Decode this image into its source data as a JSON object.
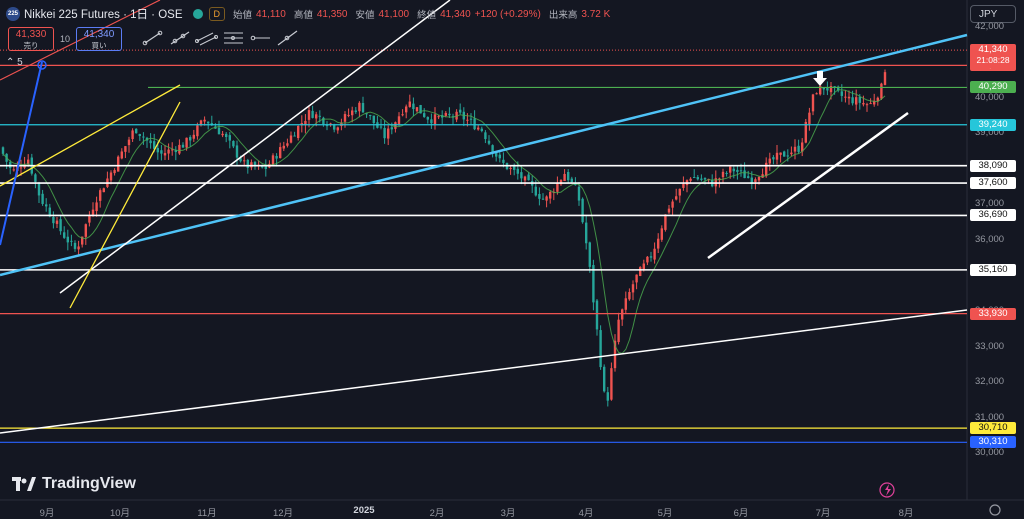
{
  "header": {
    "symbol_badge": "225",
    "title": "Nikkei 225 Futures · 1日 · OSE",
    "d_pill": "D",
    "ohlc": [
      {
        "key": "始値",
        "value": "41,110"
      },
      {
        "key": "高値",
        "value": "41,350"
      },
      {
        "key": "安値",
        "value": "41,100"
      },
      {
        "key": "終値",
        "value": "41,340"
      },
      {
        "key": "",
        "value": "+120 (+0.29%)"
      },
      {
        "key": "出来高",
        "value": "3.72 K"
      }
    ]
  },
  "trade": {
    "sell_price": "41,330",
    "sell_label": "売り",
    "spread": "10",
    "buy_price": "41,340",
    "buy_label": "買い"
  },
  "indicator_toggle": "5",
  "currency": "JPY",
  "logo_text": "TradingView",
  "chart_data": {
    "type": "candlestick",
    "y_ticks": [
      "42,000",
      "41,000",
      "40,000",
      "39,000",
      "37,000",
      "36,000",
      "34,000",
      "33,000",
      "32,000",
      "31,000",
      "30,000"
    ],
    "x_ticks": [
      "9月",
      "10月",
      "11月",
      "12月",
      "2025",
      "2月",
      "3月",
      "4月",
      "5月",
      "6月",
      "7月",
      "8月"
    ],
    "ylim": [
      29800,
      42500
    ],
    "horizontal_levels": [
      {
        "value": 40910,
        "label": "40,910",
        "color": "#ef5350"
      },
      {
        "value": 40290,
        "label": "40,290",
        "color": "#4caf50"
      },
      {
        "value": 39240,
        "label": "39,240",
        "color": "#26c6da"
      },
      {
        "value": 38090,
        "label": "38,090",
        "color": "#ffffff"
      },
      {
        "value": 37600,
        "label": "37,600",
        "color": "#ffffff"
      },
      {
        "value": 36690,
        "label": "36,690",
        "color": "#ffffff"
      },
      {
        "value": 35160,
        "label": "35,160",
        "color": "#ffffff"
      },
      {
        "value": 33930,
        "label": "33,930",
        "color": "#ef5350"
      },
      {
        "value": 30710,
        "label": "30,710",
        "color": "#ffeb3b"
      },
      {
        "value": 30310,
        "label": "30,310",
        "color": "#2962ff"
      }
    ],
    "last_price": {
      "value": 41340,
      "label": "41,340",
      "countdown": "21:08:28",
      "color": "#ef5350"
    },
    "colors": {
      "up": "#ef5350",
      "down": "#26a69a",
      "ma": "#4caf50",
      "trend": "#4fc3f7"
    }
  }
}
